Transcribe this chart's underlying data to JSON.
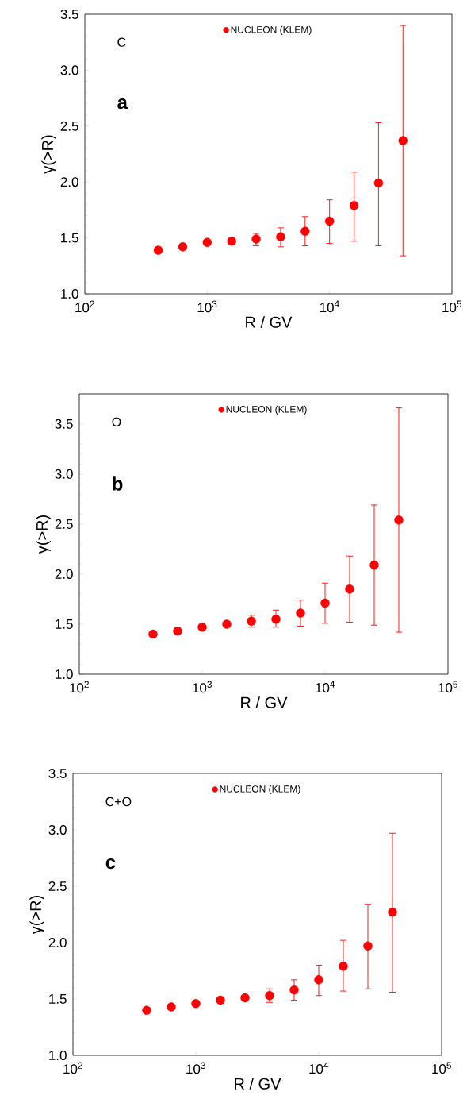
{
  "chart_data": [
    {
      "type": "scatter",
      "xlabel": "R / GV",
      "ylabel": "γ(>R)",
      "log": "x",
      "marker": "circle",
      "legend": "top",
      "annotations": [
        "C",
        "a"
      ],
      "xlim": [
        100,
        100000
      ],
      "ylim": [
        1.0,
        3.5
      ],
      "xticks": [
        {
          "value": 100,
          "label": "10$^{2}$"
        },
        {
          "value": 1000,
          "label": "10$^{3}$"
        },
        {
          "value": 10000,
          "label": "10$^{4}$"
        },
        {
          "value": 100000,
          "label": "10$^{5}$"
        }
      ],
      "yticks": [
        {
          "value": 1,
          "label": "1.0"
        },
        1.5,
        {
          "value": 2,
          "label": "2.0"
        },
        2.5,
        {
          "value": 3,
          "label": "3.0"
        },
        3.5
      ],
      "x": [
        398,
        631,
        1000,
        1585,
        2512,
        3981,
        6310,
        10000,
        15849,
        25119,
        39811
      ],
      "series": [
        {
          "name": "NUCLEON (KLEM)",
          "color": "#ff0000",
          "values": [
            1.39,
            1.42,
            1.46,
            1.47,
            1.49,
            1.51,
            1.56,
            1.65,
            1.79,
            1.99,
            2.37
          ],
          "errors": [
            null,
            null,
            null,
            null,
            [
              1.43,
              1.54
            ],
            [
              1.42,
              1.59
            ],
            [
              1.43,
              1.69
            ],
            [
              1.45,
              1.84
            ],
            [
              1.47,
              2.09
            ],
            [
              1.43,
              2.53
            ],
            [
              1.34,
              3.4
            ]
          ]
        }
      ]
    },
    {
      "type": "scatter",
      "xlabel": "R / GV",
      "ylabel": "γ(>R)",
      "log": "x",
      "marker": "circle",
      "legend": "top",
      "annotations": [
        "O",
        "b"
      ],
      "xlim": [
        100,
        100000
      ],
      "ylim": [
        1.0,
        3.8
      ],
      "xticks": [
        {
          "value": 100,
          "label": "10$^{2}$"
        },
        {
          "value": 1000,
          "label": "10$^{3}$"
        },
        {
          "value": 10000,
          "label": "10$^{4}$"
        },
        {
          "value": 100000,
          "label": "10$^{5}$"
        }
      ],
      "yticks": [
        {
          "value": 1,
          "label": "1.0"
        },
        1.5,
        {
          "value": 2,
          "label": "2.0"
        },
        2.5,
        {
          "value": 3,
          "label": "3.0"
        },
        3.5
      ],
      "x": [
        398,
        631,
        1000,
        1585,
        2512,
        3981,
        6310,
        10000,
        15849,
        25119,
        39811
      ],
      "series": [
        {
          "name": "NUCLEON (KLEM)",
          "color": "#ff0000",
          "values": [
            1.4,
            1.43,
            1.47,
            1.5,
            1.53,
            1.55,
            1.61,
            1.71,
            1.85,
            2.09,
            2.54
          ],
          "errors": [
            null,
            null,
            null,
            null,
            [
              1.47,
              1.59
            ],
            [
              1.47,
              1.64
            ],
            [
              1.48,
              1.74
            ],
            [
              1.51,
              1.91
            ],
            [
              1.52,
              2.18
            ],
            [
              1.49,
              2.69
            ],
            [
              1.42,
              3.66
            ]
          ]
        }
      ]
    },
    {
      "type": "scatter",
      "xlabel": "R / GV",
      "ylabel": "γ(>R)",
      "log": "x",
      "marker": "circle",
      "legend": "top",
      "annotations": [
        "C+O",
        "c"
      ],
      "xlim": [
        100,
        100000
      ],
      "ylim": [
        1.0,
        3.5
      ],
      "xticks": [
        {
          "value": 100,
          "label": "10$^{2}$"
        },
        {
          "value": 1000,
          "label": "10$^{3}$"
        },
        {
          "value": 10000,
          "label": "10$^{4}$"
        },
        {
          "value": 100000,
          "label": "10$^{5}$"
        }
      ],
      "yticks": [
        {
          "value": 1,
          "label": "1.0"
        },
        1.5,
        {
          "value": 2,
          "label": "2.0"
        },
        2.5,
        {
          "value": 3,
          "label": "3.0"
        },
        3.5
      ],
      "x": [
        398,
        631,
        1000,
        1585,
        2512,
        3981,
        6310,
        10000,
        15849,
        25119,
        39811
      ],
      "series": [
        {
          "name": "NUCLEON (KLEM)",
          "color": "#ff0000",
          "values": [
            1.4,
            1.43,
            1.46,
            1.49,
            1.51,
            1.53,
            1.58,
            1.67,
            1.79,
            1.97,
            2.27
          ],
          "errors": [
            null,
            null,
            null,
            null,
            null,
            [
              1.47,
              1.59
            ],
            [
              1.49,
              1.67
            ],
            [
              1.53,
              1.8
            ],
            [
              1.57,
              2.02
            ],
            [
              1.59,
              2.34
            ],
            [
              1.56,
              2.97
            ]
          ]
        }
      ]
    }
  ]
}
